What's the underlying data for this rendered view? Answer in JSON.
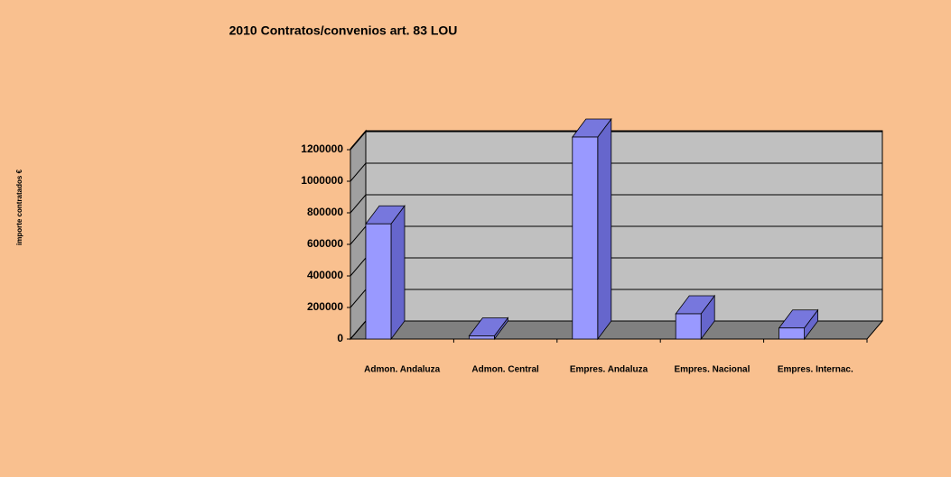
{
  "chart_data": {
    "type": "bar3d",
    "title": "2010 Contratos/convenios art. 83 LOU",
    "y_label": "importe  contratados  €",
    "categories": [
      "Admon. Andaluza",
      "Admon. Central",
      "Empres. Andaluza",
      "Empres. Nacional",
      "Empres. Internac."
    ],
    "values": [
      730000,
      20000,
      1280000,
      160000,
      70000
    ],
    "color": "#9999ff",
    "ylim": [
      0,
      1200000
    ],
    "yticks": [
      0,
      200000,
      400000,
      600000,
      800000,
      1000000,
      1200000
    ],
    "grid": true
  }
}
